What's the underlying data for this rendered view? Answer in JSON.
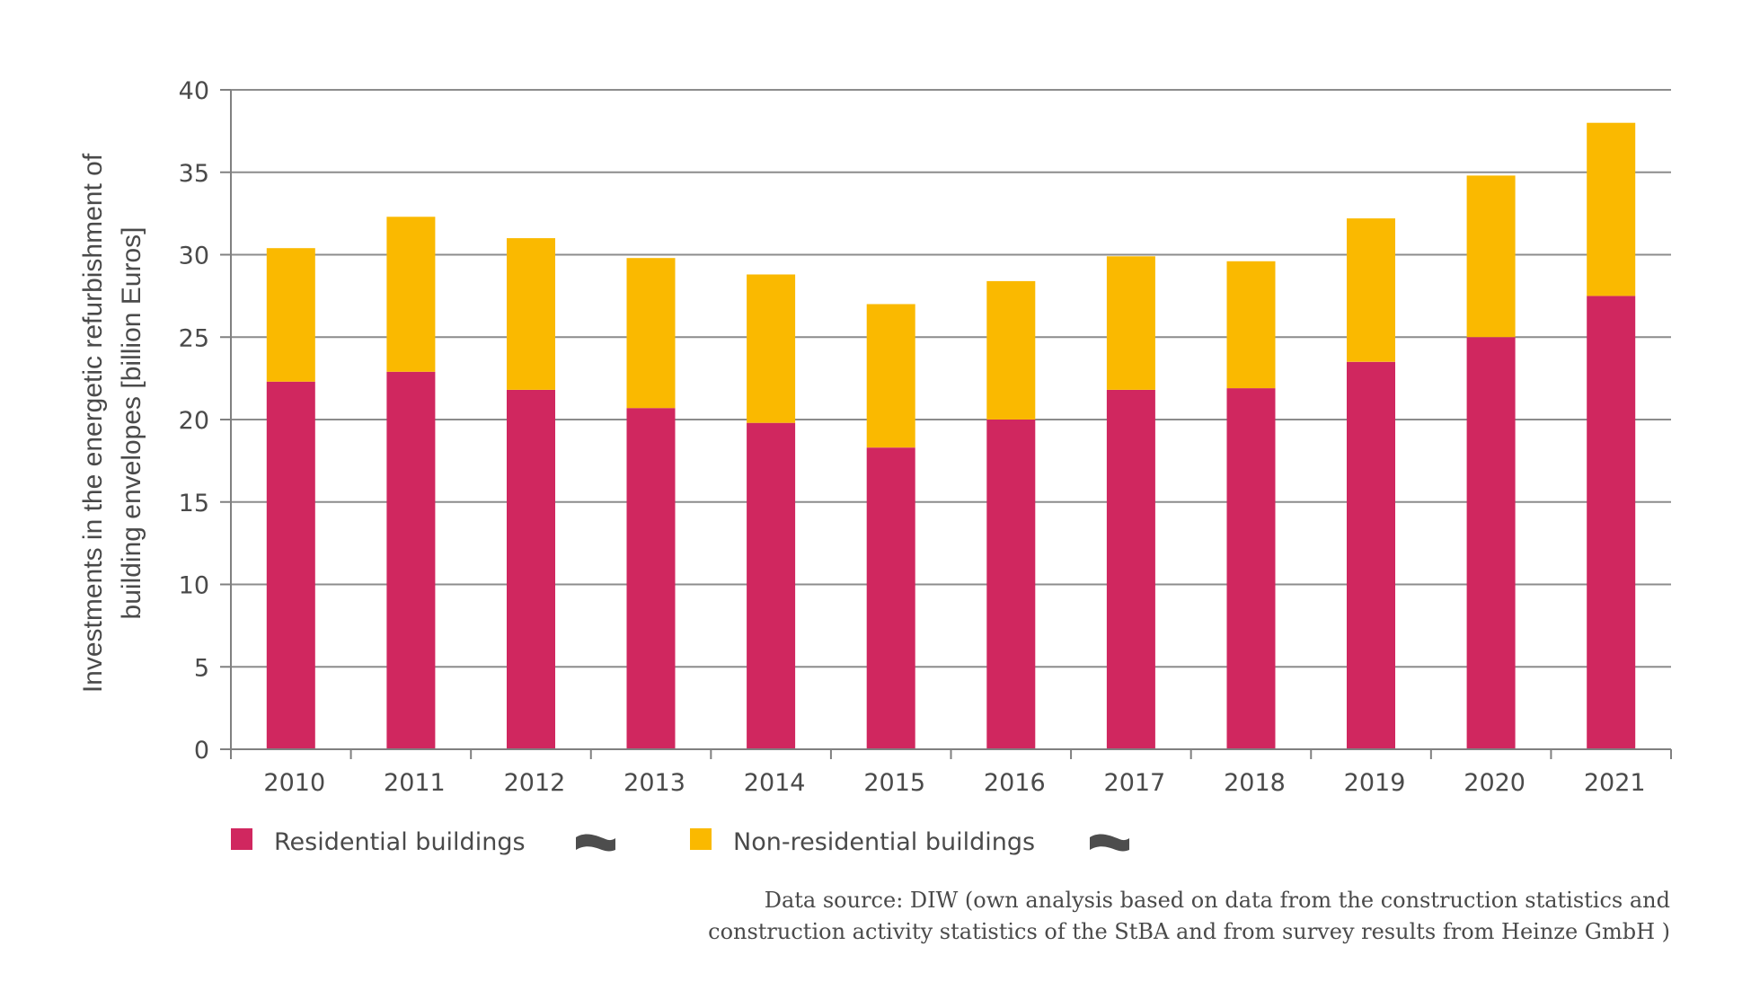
{
  "chart_data": {
    "type": "bar",
    "stacked": true,
    "title": "",
    "xlabel": "",
    "ylabel_lines": [
      "Investments in the energetic refurbishment of",
      "building envelopes [billion Euros]"
    ],
    "ylabel": "Investments in the energetic refurbishment of building envelopes [billion Euros]",
    "ylim": [
      0,
      40
    ],
    "yticks": [
      0,
      5,
      10,
      15,
      20,
      25,
      30,
      35,
      40
    ],
    "ytick_labels": [
      "0",
      "5",
      "10",
      "15",
      "20",
      "25",
      "30",
      "35",
      "40"
    ],
    "grid": true,
    "categories": [
      "2010",
      "2011",
      "2012",
      "2013",
      "2014",
      "2015",
      "2016",
      "2017",
      "2018",
      "2019",
      "2020",
      "2021"
    ],
    "series": [
      {
        "name": "Residential buildings",
        "color": "#d0275f",
        "values": [
          22.3,
          22.9,
          21.8,
          20.7,
          19.8,
          18.3,
          20.0,
          21.8,
          21.9,
          23.5,
          25.0,
          27.5
        ]
      },
      {
        "name": "Non-residential buildings",
        "color": "#fab900",
        "values": [
          8.1,
          9.4,
          9.2,
          9.1,
          9.0,
          8.7,
          8.4,
          8.1,
          7.7,
          8.7,
          9.8,
          10.5
        ]
      }
    ],
    "totals": [
      30.4,
      32.3,
      31.0,
      29.8,
      28.8,
      27.0,
      28.4,
      29.9,
      29.6,
      32.2,
      34.8,
      38.0
    ],
    "legend": {
      "placement": "bottom-left",
      "entries": [
        {
          "label": "Residential buildings",
          "color": "#d0275f",
          "trend_icon": "wave-icon"
        },
        {
          "label": "Non-residential buildings",
          "color": "#fab900",
          "trend_icon": "wave-icon"
        }
      ]
    },
    "source_lines": [
      "Data source: DIW (own analysis based on data from the construction statistics and",
      "construction activity statistics of the StBA and from survey results from Heinze GmbH )"
    ]
  },
  "colors": {
    "text": "#4a4a4a",
    "grid": "#8c8c8c",
    "trend_icon": "#4d4d4d"
  }
}
